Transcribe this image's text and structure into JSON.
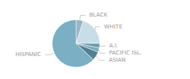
{
  "chart_data": {
    "type": "pie",
    "categories": [
      "BLACK",
      "WHITE",
      "A.I.",
      "PACIFIC ISL.",
      "ASIAN",
      "HISPANIC"
    ],
    "values": [
      5,
      20,
      3,
      3,
      6,
      63
    ],
    "colors": [
      "#9ab5c5",
      "#c9dde6",
      "#6a98aa",
      "#7aaab8",
      "#517f93",
      "#7aafc4"
    ]
  }
}
